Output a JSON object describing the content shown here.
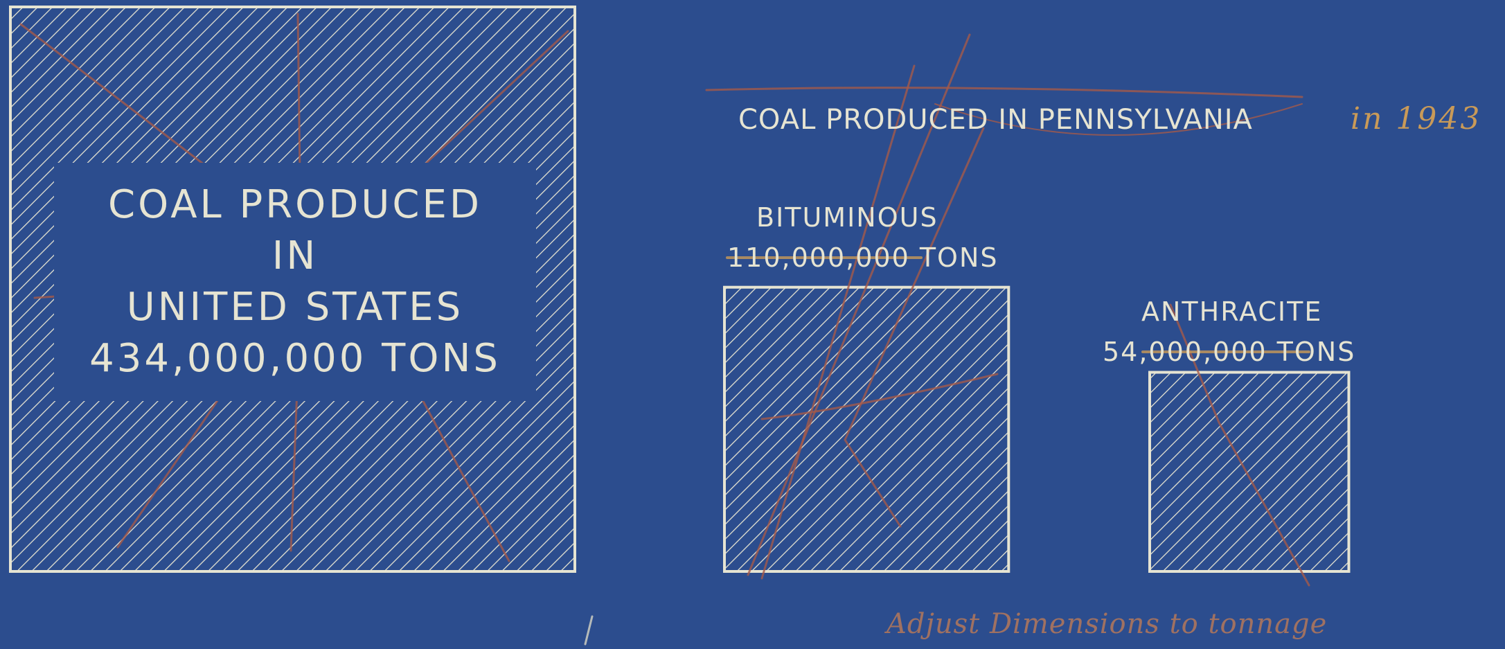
{
  "colors": {
    "background": "#2c4d8e",
    "chalk": "#e6e4d2",
    "pencil_red": "#a55a4a",
    "pencil_orange": "#c99a58"
  },
  "title": "COAL PRODUCED IN PENNSYLVANIA",
  "year_note": "in 1943",
  "us_label": {
    "line1": "COAL PRODUCED",
    "line2": "IN",
    "line3": "UNITED STATES",
    "line4": "434,000,000 TONS"
  },
  "bituminous": {
    "name": "BITUMINOUS",
    "value_text": "110,000,000 TONS"
  },
  "anthracite": {
    "name": "ANTHRACITE",
    "value_text": "54,000,000 TONS"
  },
  "margin_note": "Adjust Dimensions to tonnage",
  "chart_data": {
    "type": "area",
    "encoding": "square area proportional to tonnage",
    "unit": "tons",
    "categories": [
      "United States",
      "Bituminous",
      "Anthracite"
    ],
    "values": [
      434000000,
      110000000,
      54000000
    ]
  }
}
